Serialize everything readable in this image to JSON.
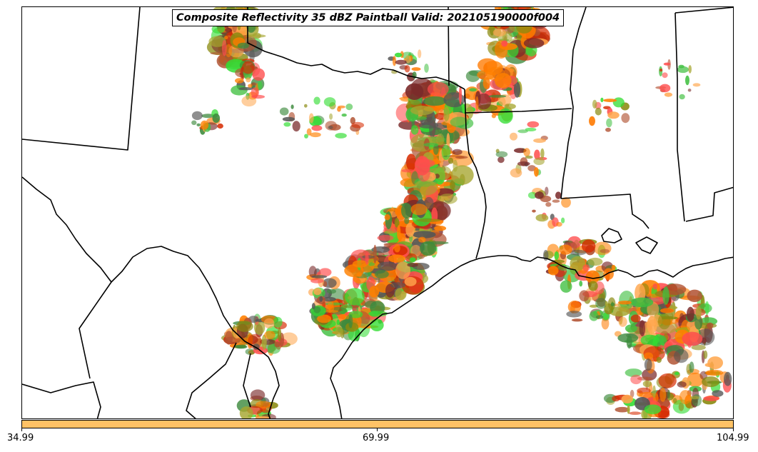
{
  "title": "Composite Reflectivity 35 dBZ Paintball Valid: 202105190000f004",
  "colorbar": {
    "color": "#ffc266",
    "ticks": [
      "34.99",
      "69.99",
      "104.99"
    ]
  },
  "palette": [
    "#ff8000",
    "#ff7a00",
    "#d62a00",
    "#ff4d4d",
    "#7a2a2a",
    "#3fbf3f",
    "#33dd33",
    "#3d8a3d",
    "#8a8a10",
    "#a6a630",
    "#ffa64d",
    "#555555",
    "#b05030"
  ],
  "map_icon": "storm-paintball-map"
}
